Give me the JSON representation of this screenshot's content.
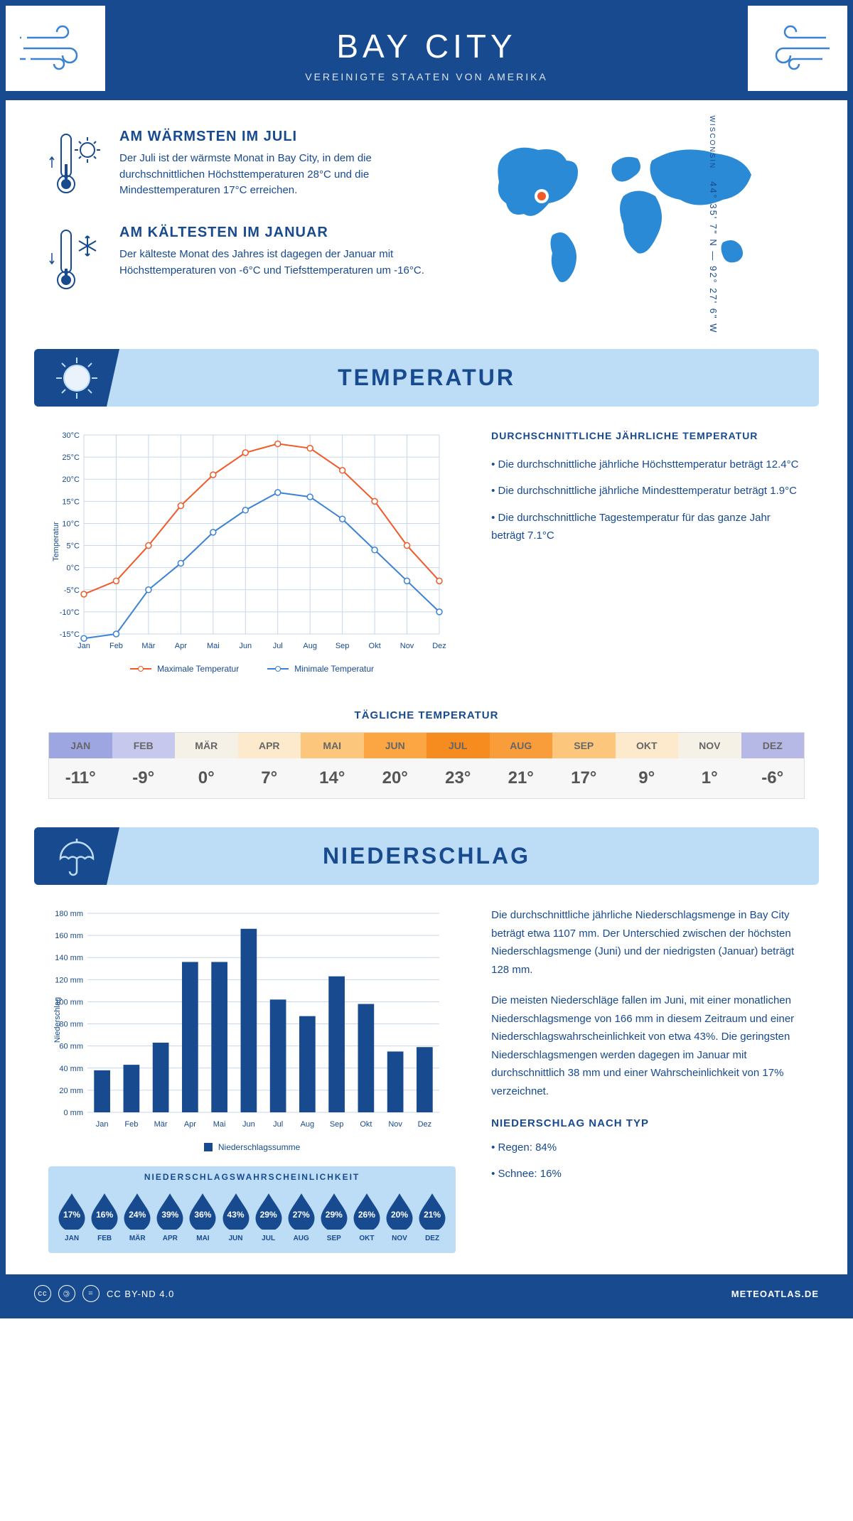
{
  "city": "BAY CITY",
  "subtitle": "VEREINIGTE STAATEN VON AMERIKA",
  "state_label": "WISCONSIN",
  "coords": "44° 35' 7\" N — 92° 27' 6\" W",
  "facts": {
    "warm": {
      "title": "AM WÄRMSTEN IM JULI",
      "text": "Der Juli ist der wärmste Monat in Bay City, in dem die durchschnittlichen Höchsttemperaturen 28°C und die Mindesttemperaturen 17°C erreichen."
    },
    "cold": {
      "title": "AM KÄLTESTEN IM JANUAR",
      "text": "Der kälteste Monat des Jahres ist dagegen der Januar mit Höchsttemperaturen von -6°C und Tiefsttemperaturen um -16°C."
    }
  },
  "temp_section": {
    "title": "TEMPERATUR",
    "side_title": "DURCHSCHNITTLICHE JÄHRLICHE TEMPERATUR",
    "bullets": [
      "• Die durchschnittliche jährliche Höchsttemperatur beträgt 12.4°C",
      "• Die durchschnittliche jährliche Mindesttemperatur beträgt 1.9°C",
      "• Die durchschnittliche Tagestemperatur für das ganze Jahr beträgt 7.1°C"
    ],
    "chart": {
      "type": "line",
      "months": [
        "Jan",
        "Feb",
        "Mär",
        "Apr",
        "Mai",
        "Jun",
        "Jul",
        "Aug",
        "Sep",
        "Okt",
        "Nov",
        "Dez"
      ],
      "max_temp": [
        -6,
        -3,
        5,
        14,
        21,
        26,
        28,
        27,
        22,
        15,
        5,
        -3
      ],
      "min_temp": [
        -16,
        -15,
        -5,
        1,
        8,
        13,
        17,
        16,
        11,
        4,
        -3,
        -10
      ],
      "max_color": "#f05a28",
      "min_color": "#3b82d6",
      "ylim": [
        -15,
        30
      ],
      "ytick_step": 5,
      "y_label": "Temperatur",
      "grid_color": "#c9d7e8",
      "axis_color": "#174a8e",
      "max_label": "Maximale Temperatur",
      "min_label": "Minimale Temperatur",
      "line_width": 2,
      "marker_size": 4,
      "font_size": 11
    },
    "daily_title": "TÄGLICHE TEMPERATUR",
    "daily": {
      "months": [
        "JAN",
        "FEB",
        "MÄR",
        "APR",
        "MAI",
        "JUN",
        "JUL",
        "AUG",
        "SEP",
        "OKT",
        "NOV",
        "DEZ"
      ],
      "values": [
        "-11°",
        "-9°",
        "0°",
        "7°",
        "14°",
        "20°",
        "23°",
        "21°",
        "17°",
        "9°",
        "1°",
        "-6°"
      ],
      "header_colors": [
        "#9da6e0",
        "#c6c9ed",
        "#f5f1e6",
        "#fdeacc",
        "#fcc77d",
        "#fba643",
        "#f68b1f",
        "#f99c3a",
        "#fcc77d",
        "#fdeacc",
        "#f5f1e6",
        "#b6b8e6"
      ],
      "header_text_color": "#666"
    }
  },
  "precip_section": {
    "title": "NIEDERSCHLAG",
    "chart": {
      "type": "bar",
      "months": [
        "Jan",
        "Feb",
        "Mär",
        "Apr",
        "Mai",
        "Jun",
        "Jul",
        "Aug",
        "Sep",
        "Okt",
        "Nov",
        "Dez"
      ],
      "values": [
        38,
        43,
        63,
        136,
        136,
        166,
        102,
        87,
        123,
        98,
        55,
        59
      ],
      "bar_color": "#174a8e",
      "ylim": [
        0,
        180
      ],
      "ytick_step": 20,
      "y_label": "Niederschlag",
      "grid_color": "#c9d7e8",
      "axis_color": "#174a8e",
      "legend_label": "Niederschlagssumme",
      "font_size": 11,
      "bar_width": 0.55
    },
    "side_text": [
      "Die durchschnittliche jährliche Niederschlagsmenge in Bay City beträgt etwa 1107 mm. Der Unterschied zwischen der höchsten Niederschlagsmenge (Juni) und der niedrigsten (Januar) beträgt 128 mm.",
      "Die meisten Niederschläge fallen im Juni, mit einer monatlichen Niederschlagsmenge von 166 mm in diesem Zeitraum und einer Niederschlagswahrscheinlichkeit von etwa 43%. Die geringsten Niederschlagsmengen werden dagegen im Januar mit durchschnittlich 38 mm und einer Wahrscheinlichkeit von 17% verzeichnet."
    ],
    "prob_title": "NIEDERSCHLAGSWAHRSCHEINLICHKEIT",
    "prob": {
      "months": [
        "JAN",
        "FEB",
        "MÄR",
        "APR",
        "MAI",
        "JUN",
        "JUL",
        "AUG",
        "SEP",
        "OKT",
        "NOV",
        "DEZ"
      ],
      "values": [
        "17%",
        "16%",
        "24%",
        "39%",
        "36%",
        "43%",
        "29%",
        "27%",
        "29%",
        "26%",
        "20%",
        "21%"
      ],
      "drop_fill": "#174a8e",
      "drop_stroke": "#174a8e"
    },
    "type_title": "NIEDERSCHLAG NACH TYP",
    "type_items": [
      "• Regen: 84%",
      "• Schnee: 16%"
    ]
  },
  "footer": {
    "license": "CC BY-ND 4.0",
    "site": "METEOATLAS.DE"
  },
  "colors": {
    "primary": "#174a8e",
    "light_blue": "#bdddf6",
    "map_blue": "#2b8ad6"
  }
}
